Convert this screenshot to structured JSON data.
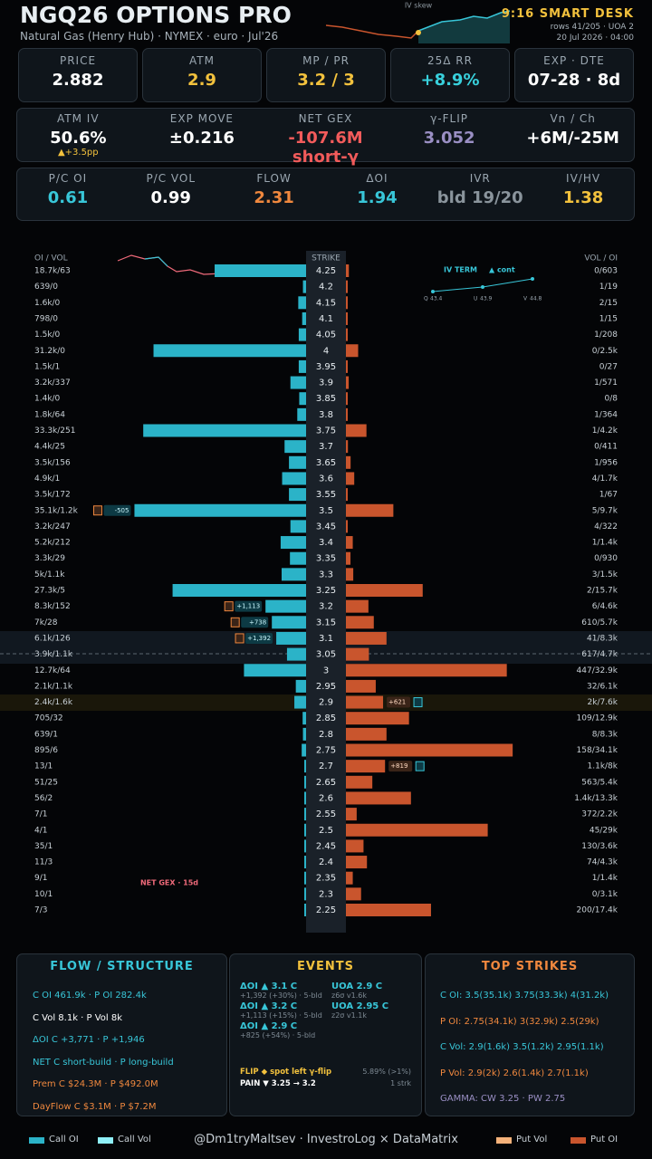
{
  "header": {
    "title": "NGQ26 OPTIONS PRO",
    "subtitle": "Natural Gas (Henry Hub) · NYMEX · euro · Jul'26",
    "spark_label": "IV skew",
    "desk": "9:16 SMART DESK",
    "rows": "rows 41/205 · UOA 2",
    "time": "20 Jul 2026 · 04:00"
  },
  "cards": [
    [
      {
        "label": "PRICE",
        "value": "2.882",
        "color": "#ffffff"
      },
      {
        "label": "ATM",
        "value": "2.9",
        "color": "#f2c13d"
      },
      {
        "label": "MP / PR",
        "value": "3.2 / 3",
        "color": "#f2c13d"
      },
      {
        "label": "25Δ RR",
        "value": "+8.9%",
        "color": "#38d0dc"
      },
      {
        "label": "EXP · DTE",
        "value": "07-28 · 8d",
        "color": "#ffffff"
      }
    ],
    [
      {
        "label": "ATM IV",
        "value": "50.6%",
        "sub": "▲+3.5pp",
        "color": "#ffffff"
      },
      {
        "label": "EXP MOVE",
        "value": "±0.216",
        "color": "#ffffff"
      },
      {
        "label": "NET GEX",
        "value": "-107.6M short-γ",
        "color": "#f25b5b"
      },
      {
        "label": "γ-FLIP",
        "value": "3.052",
        "color": "#9a8fc4"
      },
      {
        "label": "Vn / Ch",
        "value": "+6M/-25M",
        "color": "#ffffff"
      }
    ],
    [
      {
        "label": "P/C OI",
        "value": "0.61",
        "color": "#38c6d8"
      },
      {
        "label": "P/C VOL",
        "value": "0.99",
        "color": "#ffffff"
      },
      {
        "label": "FLOW",
        "value": "2.31",
        "color": "#f0883e"
      },
      {
        "label": "ΔOI",
        "value": "1.94",
        "color": "#38c6d8"
      },
      {
        "label": "IVR",
        "value": "bld 19/20",
        "color": "#8a949c"
      },
      {
        "label": "IV/HV",
        "value": "1.38",
        "color": "#f2c13d"
      }
    ]
  ],
  "chart_data": {
    "type": "butterfly",
    "headers": {
      "left": "OI / VOL",
      "strike": "STRIKE",
      "right": "VOL / OI"
    },
    "rows": [
      {
        "strike": 4.25,
        "left": "18.7k/63",
        "right": "0/603",
        "call_oi": 18700,
        "put_oi": 603
      },
      {
        "strike": 4.2,
        "left": "639/0",
        "right": "1/19",
        "call_oi": 639,
        "put_oi": 19
      },
      {
        "strike": 4.15,
        "left": "1.6k/0",
        "right": "2/15",
        "call_oi": 1600,
        "put_oi": 15
      },
      {
        "strike": 4.1,
        "left": "798/0",
        "right": "1/15",
        "call_oi": 798,
        "put_oi": 15
      },
      {
        "strike": 4.05,
        "left": "1.5k/0",
        "right": "1/208",
        "call_oi": 1500,
        "put_oi": 208
      },
      {
        "strike": 4,
        "left": "31.2k/0",
        "right": "0/2.5k",
        "call_oi": 31200,
        "put_oi": 2500
      },
      {
        "strike": 3.95,
        "left": "1.5k/1",
        "right": "0/27",
        "call_oi": 1500,
        "put_oi": 27
      },
      {
        "strike": 3.9,
        "left": "3.2k/337",
        "right": "1/571",
        "call_oi": 3200,
        "put_oi": 571
      },
      {
        "strike": 3.85,
        "left": "1.4k/0",
        "right": "0/8",
        "call_oi": 1400,
        "put_oi": 8
      },
      {
        "strike": 3.8,
        "left": "1.8k/64",
        "right": "1/364",
        "call_oi": 1800,
        "put_oi": 364
      },
      {
        "strike": 3.75,
        "left": "33.3k/251",
        "right": "1/4.2k",
        "call_oi": 33300,
        "put_oi": 4200
      },
      {
        "strike": 3.7,
        "left": "4.4k/25",
        "right": "0/411",
        "call_oi": 4400,
        "put_oi": 411
      },
      {
        "strike": 3.65,
        "left": "3.5k/156",
        "right": "1/956",
        "call_oi": 3500,
        "put_oi": 956
      },
      {
        "strike": 3.6,
        "left": "4.9k/1",
        "right": "4/1.7k",
        "call_oi": 4900,
        "put_oi": 1700
      },
      {
        "strike": 3.55,
        "left": "3.5k/172",
        "right": "1/67",
        "call_oi": 3500,
        "put_oi": 67
      },
      {
        "strike": 3.5,
        "left": "35.1k/1.2k",
        "right": "5/9.7k",
        "call_oi": 35100,
        "put_oi": 9700,
        "call_badge": "-505"
      },
      {
        "strike": 3.45,
        "left": "3.2k/247",
        "right": "4/322",
        "call_oi": 3200,
        "put_oi": 322
      },
      {
        "strike": 3.4,
        "left": "5.2k/212",
        "right": "1/1.4k",
        "call_oi": 5200,
        "put_oi": 1400
      },
      {
        "strike": 3.35,
        "left": "3.3k/29",
        "right": "0/930",
        "call_oi": 3300,
        "put_oi": 930
      },
      {
        "strike": 3.3,
        "left": "5k/1.1k",
        "right": "3/1.5k",
        "call_oi": 5000,
        "put_oi": 1500
      },
      {
        "strike": 3.25,
        "left": "27.3k/5",
        "right": "2/15.7k",
        "call_oi": 27300,
        "put_oi": 15700
      },
      {
        "strike": 3.2,
        "left": "8.3k/152",
        "right": "6/4.6k",
        "call_oi": 8300,
        "put_oi": 4600,
        "call_badge": "+1,113"
      },
      {
        "strike": 3.15,
        "left": "7k/28",
        "right": "610/5.7k",
        "call_oi": 7000,
        "put_oi": 5700,
        "call_badge": "+738"
      },
      {
        "strike": 3.1,
        "left": "6.1k/126",
        "right": "41/8.3k",
        "call_oi": 6100,
        "put_oi": 8300,
        "call_badge": "+1,392"
      },
      {
        "strike": 3.05,
        "left": "3.9k/1.1k",
        "right": "617/4.7k",
        "call_oi": 3900,
        "put_oi": 4700
      },
      {
        "strike": 3,
        "left": "12.7k/64",
        "right": "447/32.9k",
        "call_oi": 12700,
        "put_oi": 32900
      },
      {
        "strike": 2.95,
        "left": "2.1k/1.1k",
        "right": "32/6.1k",
        "call_oi": 2100,
        "put_oi": 6100
      },
      {
        "strike": 2.9,
        "left": "2.4k/1.6k",
        "right": "2k/7.6k",
        "call_oi": 2400,
        "put_oi": 7600,
        "put_badge": "+621"
      },
      {
        "strike": 2.85,
        "left": "705/32",
        "right": "109/12.9k",
        "call_oi": 705,
        "put_oi": 12900
      },
      {
        "strike": 2.8,
        "left": "639/1",
        "right": "8/8.3k",
        "call_oi": 639,
        "put_oi": 8300
      },
      {
        "strike": 2.75,
        "left": "895/6",
        "right": "158/34.1k",
        "call_oi": 895,
        "put_oi": 34100
      },
      {
        "strike": 2.7,
        "left": "13/1",
        "right": "1.1k/8k",
        "call_oi": 13,
        "put_oi": 8000,
        "put_badge": "+819"
      },
      {
        "strike": 2.65,
        "left": "51/25",
        "right": "563/5.4k",
        "call_oi": 51,
        "put_oi": 5400
      },
      {
        "strike": 2.6,
        "left": "56/2",
        "right": "1.4k/13.3k",
        "call_oi": 56,
        "put_oi": 13300
      },
      {
        "strike": 2.55,
        "left": "7/1",
        "right": "372/2.2k",
        "call_oi": 7,
        "put_oi": 2200
      },
      {
        "strike": 2.5,
        "left": "4/1",
        "right": "45/29k",
        "call_oi": 4,
        "put_oi": 29000
      },
      {
        "strike": 2.45,
        "left": "35/1",
        "right": "130/3.6k",
        "call_oi": 35,
        "put_oi": 3600
      },
      {
        "strike": 2.4,
        "left": "11/3",
        "right": "74/4.3k",
        "call_oi": 11,
        "put_oi": 4300
      },
      {
        "strike": 2.35,
        "left": "9/1",
        "right": "1/1.4k",
        "call_oi": 9,
        "put_oi": 1400
      },
      {
        "strike": 2.3,
        "left": "10/1",
        "right": "0/3.1k",
        "call_oi": 10,
        "put_oi": 3100
      },
      {
        "strike": 2.25,
        "left": "7/3",
        "right": "200/17.4k",
        "call_oi": 7,
        "put_oi": 17400
      }
    ],
    "call_color": "#2bb3c8",
    "put_color": "#c9552d",
    "iv_term": {
      "title": "IV TERM",
      "note": "▲ cont",
      "points": [
        {
          "label": "Q",
          "value": 43.4
        },
        {
          "label": "U",
          "value": 43.9
        },
        {
          "label": "V",
          "value": 44.8
        }
      ]
    },
    "net_gex_label": "NET GEX · 15d"
  },
  "panels": {
    "flow": {
      "title": "FLOW / STRUCTURE",
      "lines": [
        {
          "text": "C OI 461.9k  ·  P OI 282.4k",
          "color": "#38c6d8"
        },
        {
          "text": "C Vol 8.1k  ·  P Vol 8k",
          "color": "#ffffff"
        },
        {
          "text": "ΔOI C +3,771  ·  P +1,946",
          "color": "#38c6d8"
        },
        {
          "text": "NET  C short-build  ·  P long-build",
          "color": "#38c6d8"
        },
        {
          "text": "Prem  C $24.3M  ·  P $492.0M",
          "color": "#f0883e"
        },
        {
          "text": "DayFlow  C $3.1M  ·  P $7.2M",
          "color": "#f0883e"
        }
      ]
    },
    "events": {
      "title": "EVENTS",
      "left": [
        {
          "title": "ΔOI ▲ 3.1 C",
          "detail": "+1,392 (+30%) · 5-bld"
        },
        {
          "title": "ΔOI ▲ 3.2 C",
          "detail": "+1,113 (+15%) · 5-bld"
        },
        {
          "title": "ΔOI ▲ 2.9 C",
          "detail": "+825 (+54%) · 5-bld"
        }
      ],
      "right": [
        {
          "title": "UOA 2.9 C",
          "detail": "z6σ v1.6k"
        },
        {
          "title": "UOA 2.95 C",
          "detail": "z2σ v1.1k"
        }
      ],
      "notes": [
        {
          "text": "FLIP ◆ spot left γ-flip",
          "side": "5.89% (>1%)",
          "color": "#f2c13d"
        },
        {
          "text": "PAIN ▼ 3.25 → 3.2",
          "side": "1 strk",
          "color": "#ffffff"
        }
      ]
    },
    "top": {
      "title": "TOP STRIKES",
      "lines": [
        {
          "text": "C OI: 3.5(35.1k)  3.75(33.3k)  4(31.2k)",
          "color": "#38c6d8"
        },
        {
          "text": "P OI: 2.75(34.1k)  3(32.9k)  2.5(29k)",
          "color": "#f0883e"
        },
        {
          "text": "C Vol: 2.9(1.6k)  3.5(1.2k)  2.95(1.1k)",
          "color": "#38c6d8"
        },
        {
          "text": "P Vol: 2.9(2k)  2.6(1.4k)  2.7(1.1k)",
          "color": "#f0883e"
        },
        {
          "text": "GAMMA: CW 3.25 · PW 2.75",
          "color": "#9a8fc4"
        }
      ]
    }
  },
  "footer": {
    "legend": [
      {
        "name": "Call OI",
        "color": "#2bb3c8"
      },
      {
        "name": "Call Vol",
        "color": "#8ff0f8"
      },
      {
        "name": "Put Vol",
        "color": "#f5b27a"
      },
      {
        "name": "Put OI",
        "color": "#c9552d"
      }
    ],
    "credit": "@Dm1tryMaltsev  ·  InvestroLog × DataMatrix"
  }
}
